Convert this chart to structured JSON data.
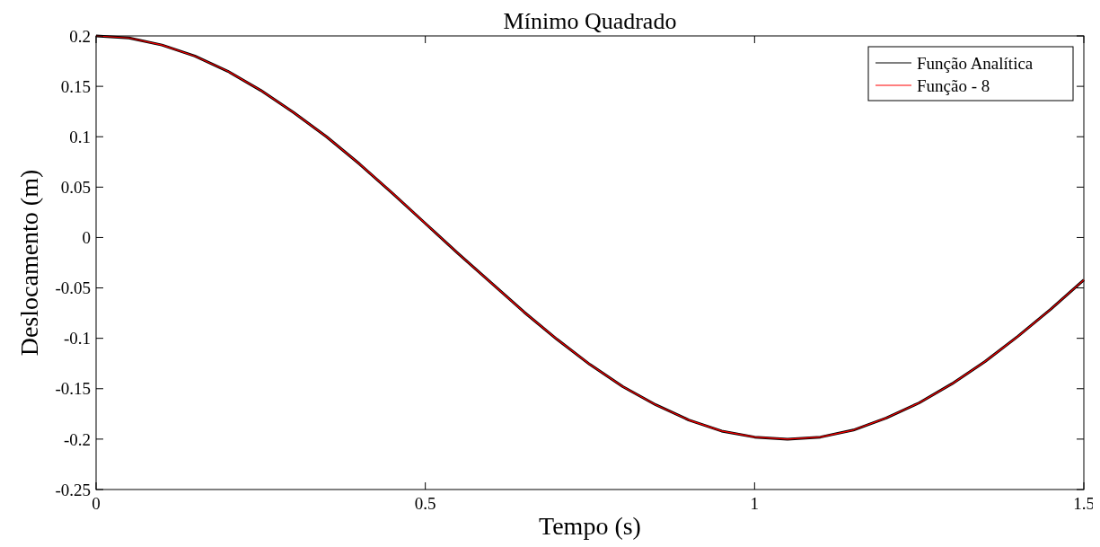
{
  "chart_data": {
    "type": "line",
    "title": "Mínimo Quadrado",
    "xlabel": "Tempo (s)",
    "ylabel": "Deslocamento (m)",
    "x": [
      0,
      0.05,
      0.1,
      0.15,
      0.2,
      0.25,
      0.3,
      0.35,
      0.4,
      0.45,
      0.5,
      0.55,
      0.6,
      0.65,
      0.7,
      0.75,
      0.8,
      0.85,
      0.9,
      0.95,
      1,
      1.05,
      1.1,
      1.15,
      1.2,
      1.25,
      1.3,
      1.35,
      1.4,
      1.45,
      1.5
    ],
    "series": [
      {
        "name": "Função Analítica",
        "color": "#000000",
        "values": [
          0.2,
          0.198,
          0.191,
          0.18,
          0.165,
          0.146,
          0.124,
          0.1,
          0.073,
          0.044,
          0.014,
          -0.016,
          -0.045,
          -0.074,
          -0.101,
          -0.126,
          -0.148,
          -0.166,
          -0.181,
          -0.192,
          -0.198,
          -0.2,
          -0.198,
          -0.191,
          -0.179,
          -0.164,
          -0.145,
          -0.123,
          -0.098,
          -0.071,
          -0.042
        ]
      },
      {
        "name": "Função - 8",
        "color": "#ff0000",
        "values": [
          0.2,
          0.198,
          0.191,
          0.18,
          0.165,
          0.146,
          0.124,
          0.1,
          0.073,
          0.044,
          0.014,
          -0.016,
          -0.045,
          -0.074,
          -0.101,
          -0.126,
          -0.148,
          -0.166,
          -0.181,
          -0.192,
          -0.198,
          -0.2,
          -0.198,
          -0.191,
          -0.179,
          -0.164,
          -0.145,
          -0.123,
          -0.098,
          -0.071,
          -0.042
        ]
      }
    ],
    "xlim": [
      0,
      1.5
    ],
    "xticks": [
      0,
      0.5,
      1,
      1.5
    ],
    "ylim": [
      -0.25,
      0.2
    ],
    "yticks": [
      -0.25,
      -0.2,
      -0.15,
      -0.1,
      -0.05,
      0,
      0.05,
      0.1,
      0.15,
      0.2
    ],
    "grid": false,
    "legend": "top right",
    "marker": "none",
    "line_style": "solid"
  }
}
